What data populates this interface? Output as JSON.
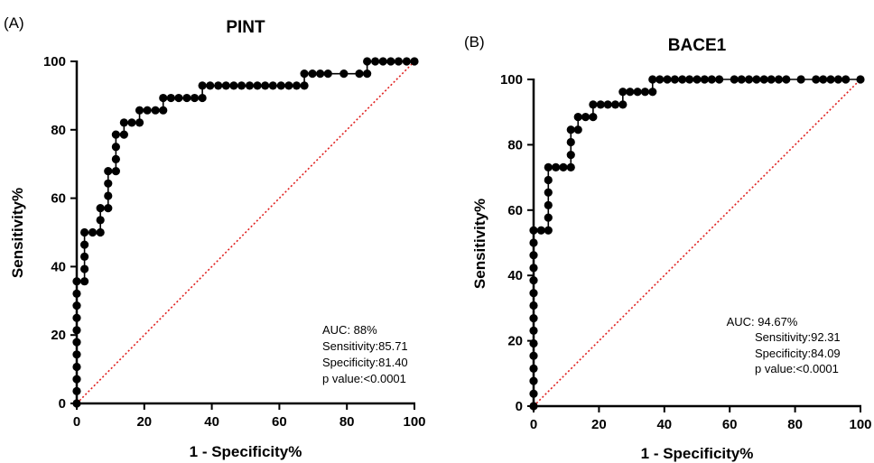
{
  "chart_data": [
    {
      "type": "line",
      "panel_label": "(A)",
      "title": "PINT",
      "xlabel": "1 - Specificity%",
      "ylabel": "Sensitivity%",
      "xlim": [
        0,
        100
      ],
      "ylim": [
        0,
        100
      ],
      "xticks": [
        "0",
        "20",
        "40",
        "60",
        "80",
        "100"
      ],
      "yticks": [
        "0",
        "20",
        "40",
        "60",
        "80",
        "100"
      ],
      "reference_line": {
        "from": [
          0,
          0
        ],
        "to": [
          100,
          100
        ],
        "color": "#e0201f",
        "style": "dotted"
      },
      "stats": [
        "AUC: 88%",
        "Sensitivity:85.71",
        "Specificity:81.40",
        "p value:<0.0001"
      ],
      "series": [
        {
          "color": "#000000",
          "points": [
            [
              0,
              0
            ],
            [
              0,
              3.6
            ],
            [
              0,
              7.1
            ],
            [
              0,
              10.7
            ],
            [
              0,
              14.3
            ],
            [
              0,
              17.9
            ],
            [
              0,
              21.4
            ],
            [
              0,
              25
            ],
            [
              0,
              28.6
            ],
            [
              0,
              32.1
            ],
            [
              0,
              35.7
            ],
            [
              2.3,
              35.7
            ],
            [
              2.3,
              39.3
            ],
            [
              2.3,
              42.9
            ],
            [
              2.3,
              46.4
            ],
            [
              2.3,
              50
            ],
            [
              4.7,
              50
            ],
            [
              7,
              50
            ],
            [
              7,
              53.6
            ],
            [
              7,
              57.1
            ],
            [
              9.3,
              57.1
            ],
            [
              9.3,
              60.7
            ],
            [
              9.3,
              64.3
            ],
            [
              9.3,
              67.9
            ],
            [
              11.6,
              67.9
            ],
            [
              11.6,
              71.4
            ],
            [
              11.6,
              75
            ],
            [
              11.6,
              78.6
            ],
            [
              14,
              78.6
            ],
            [
              14,
              82.1
            ],
            [
              16.3,
              82.1
            ],
            [
              18.6,
              82.1
            ],
            [
              18.6,
              85.7
            ],
            [
              20.9,
              85.7
            ],
            [
              23.3,
              85.7
            ],
            [
              25.6,
              85.7
            ],
            [
              25.6,
              89.3
            ],
            [
              27.9,
              89.3
            ],
            [
              30.2,
              89.3
            ],
            [
              32.6,
              89.3
            ],
            [
              34.9,
              89.3
            ],
            [
              37.2,
              89.3
            ],
            [
              37.2,
              92.9
            ],
            [
              39.5,
              92.9
            ],
            [
              41.9,
              92.9
            ],
            [
              44.2,
              92.9
            ],
            [
              46.5,
              92.9
            ],
            [
              48.8,
              92.9
            ],
            [
              51.2,
              92.9
            ],
            [
              53.5,
              92.9
            ],
            [
              55.8,
              92.9
            ],
            [
              58.1,
              92.9
            ],
            [
              60.5,
              92.9
            ],
            [
              62.8,
              92.9
            ],
            [
              65.1,
              92.9
            ],
            [
              67.4,
              92.9
            ],
            [
              67.4,
              96.4
            ],
            [
              69.8,
              96.4
            ],
            [
              72.1,
              96.4
            ],
            [
              74.4,
              96.4
            ],
            [
              79.1,
              96.4
            ],
            [
              83.7,
              96.4
            ],
            [
              86,
              96.4
            ],
            [
              86,
              100
            ],
            [
              88.4,
              100
            ],
            [
              90.7,
              100
            ],
            [
              93,
              100
            ],
            [
              95.3,
              100
            ],
            [
              97.7,
              100
            ],
            [
              100,
              100
            ]
          ]
        }
      ]
    },
    {
      "type": "line",
      "panel_label": "(B)",
      "title": "BACE1",
      "xlabel": "1 - Specificity%",
      "ylabel": "Sensitivity%",
      "xlim": [
        0,
        100
      ],
      "ylim": [
        0,
        100
      ],
      "xticks": [
        "0",
        "20",
        "40",
        "60",
        "80",
        "100"
      ],
      "yticks": [
        "0",
        "20",
        "40",
        "60",
        "80",
        "100"
      ],
      "reference_line": {
        "from": [
          0,
          0
        ],
        "to": [
          100,
          100
        ],
        "color": "#e0201f",
        "style": "dotted"
      },
      "stats": [
        "AUC: 94.67%",
        "Sensitivity:92.31",
        "Specificity:84.09",
        "p value:<0.0001"
      ],
      "series": [
        {
          "color": "#000000",
          "points": [
            [
              0,
              0
            ],
            [
              0,
              3.8
            ],
            [
              0,
              7.7
            ],
            [
              0,
              11.5
            ],
            [
              0,
              15.4
            ],
            [
              0,
              19.2
            ],
            [
              0,
              23.1
            ],
            [
              0,
              26.9
            ],
            [
              0,
              30.8
            ],
            [
              0,
              34.6
            ],
            [
              0,
              38.5
            ],
            [
              0,
              42.3
            ],
            [
              0,
              46.2
            ],
            [
              0,
              50
            ],
            [
              0,
              53.8
            ],
            [
              2.3,
              53.8
            ],
            [
              4.5,
              53.8
            ],
            [
              4.5,
              57.7
            ],
            [
              4.5,
              61.5
            ],
            [
              4.5,
              65.4
            ],
            [
              4.5,
              69.2
            ],
            [
              4.5,
              73.1
            ],
            [
              6.8,
              73.1
            ],
            [
              9.1,
              73.1
            ],
            [
              11.4,
              73.1
            ],
            [
              11.4,
              76.9
            ],
            [
              11.4,
              80.8
            ],
            [
              11.4,
              84.6
            ],
            [
              13.6,
              84.6
            ],
            [
              13.6,
              88.5
            ],
            [
              15.9,
              88.5
            ],
            [
              18.2,
              88.5
            ],
            [
              18.2,
              92.3
            ],
            [
              20.5,
              92.3
            ],
            [
              22.7,
              92.3
            ],
            [
              25,
              92.3
            ],
            [
              27.3,
              92.3
            ],
            [
              27.3,
              96.2
            ],
            [
              29.5,
              96.2
            ],
            [
              31.8,
              96.2
            ],
            [
              34.1,
              96.2
            ],
            [
              36.4,
              96.2
            ],
            [
              36.4,
              100
            ],
            [
              38.6,
              100
            ],
            [
              40.9,
              100
            ],
            [
              43.2,
              100
            ],
            [
              45.5,
              100
            ],
            [
              47.7,
              100
            ],
            [
              50,
              100
            ],
            [
              52.3,
              100
            ],
            [
              54.5,
              100
            ],
            [
              56.8,
              100
            ],
            [
              61.4,
              100
            ],
            [
              63.6,
              100
            ],
            [
              65.9,
              100
            ],
            [
              68.2,
              100
            ],
            [
              70.5,
              100
            ],
            [
              72.7,
              100
            ],
            [
              75,
              100
            ],
            [
              77.3,
              100
            ],
            [
              81.8,
              100
            ],
            [
              86.4,
              100
            ],
            [
              88.6,
              100
            ],
            [
              90.9,
              100
            ],
            [
              93.2,
              100
            ],
            [
              95.5,
              100
            ],
            [
              100,
              100
            ]
          ]
        }
      ]
    }
  ]
}
